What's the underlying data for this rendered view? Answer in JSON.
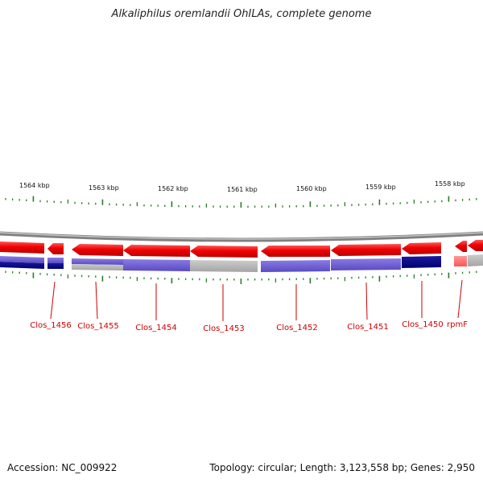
{
  "title": "Alkaliphilus oremlandii OhILAs, complete genome",
  "kbp_labels": [
    "1564 kbp",
    "1563 kbp",
    "1562 kbp",
    "1561 kbp",
    "1560 kbp",
    "1559 kbp",
    "1558 kbp"
  ],
  "genes": [
    "Clos_1456",
    "Clos_1455",
    "Clos_1454",
    "Clos_1453",
    "Clos_1452",
    "Clos_1451",
    "Clos_1450",
    "rpmF"
  ],
  "footer": {
    "accession": "Accession: NC_009922",
    "summary": "Topology: circular; Length: 3,123,558 bp; Genes: 2,950"
  },
  "colors": {
    "forward_gene": "#ee0000",
    "blue_dark": "#000080",
    "blue_light": "#6a5acd",
    "gray": "#b4b4b4",
    "tick": "#2a7a2a",
    "label": "#cc0000"
  }
}
